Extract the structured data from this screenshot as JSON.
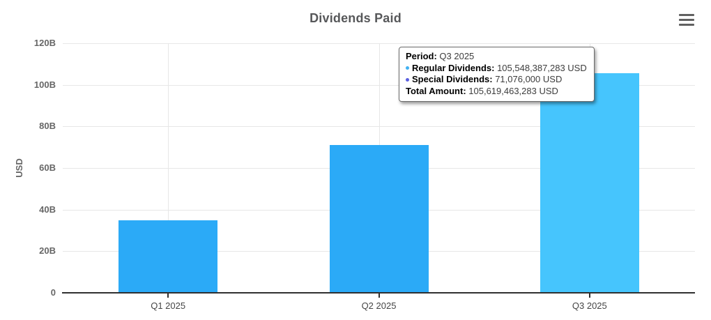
{
  "header": {
    "title": "Dividends Paid"
  },
  "chart_data": {
    "type": "bar",
    "title": "Dividends Paid",
    "categories": [
      "Q1 2025",
      "Q2 2025",
      "Q3 2025"
    ],
    "series": [
      {
        "name": "Dividends Paid",
        "values_billions_usd": [
          35,
          71,
          105.62
        ]
      }
    ],
    "xlabel": "",
    "ylabel": "USD",
    "ylim_billions": [
      0,
      120
    ],
    "yticks": [
      {
        "value": 0,
        "label": "0"
      },
      {
        "value": 20,
        "label": "20B"
      },
      {
        "value": 40,
        "label": "40B"
      },
      {
        "value": 60,
        "label": "60B"
      },
      {
        "value": 80,
        "label": "80B"
      },
      {
        "value": 100,
        "label": "100B"
      },
      {
        "value": 120,
        "label": "120B"
      }
    ],
    "grid": true,
    "legend": "none",
    "bar_color": "#2baaf7",
    "active_bar_color": "#46c5fd",
    "active_index": 2
  },
  "tooltip": {
    "rows": [
      {
        "label": "Period:",
        "value": "Q3 2025"
      },
      {
        "label": "Regular Dividends:",
        "value": "105,548,387,283 USD",
        "bullet_color": "#41b1f2"
      },
      {
        "label": "Special Dividends:",
        "value": "71,076,000 USD",
        "bullet_color": "#5a5fe0"
      },
      {
        "label": "Total Amount:",
        "value": "105,619,463,283 USD"
      }
    ]
  },
  "icons": {
    "menu": "hamburger-menu-icon"
  }
}
